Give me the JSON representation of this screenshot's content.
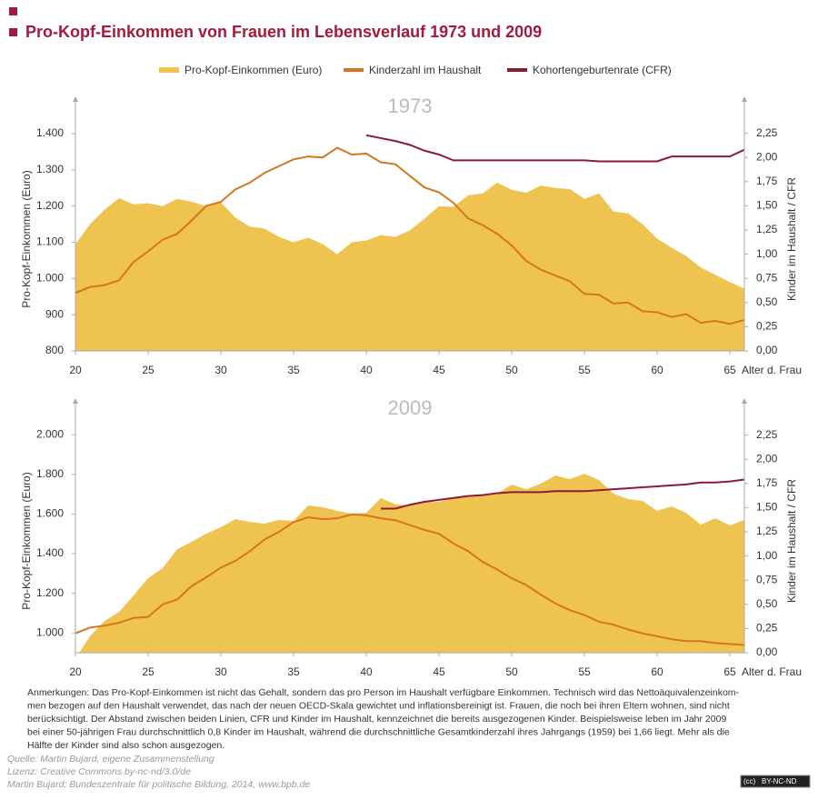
{
  "header": {
    "title": "Pro-Kopf-Einkommen von Frauen im Lebensverlauf 1973 und 2009"
  },
  "chart_data": [
    {
      "type": "area-line",
      "title": "1973",
      "xlabel": "Alter d. Frau",
      "ylabel": "Pro-Kopf-Einkommen (Euro)",
      "y2label": "Kinder im Haushalt / CFR",
      "x": [
        20,
        21,
        22,
        23,
        24,
        25,
        26,
        27,
        28,
        29,
        30,
        31,
        32,
        33,
        34,
        35,
        36,
        37,
        38,
        39,
        40,
        41,
        42,
        43,
        44,
        45,
        46,
        47,
        48,
        49,
        50,
        51,
        52,
        53,
        54,
        55,
        56,
        57,
        58,
        59,
        60,
        61,
        62,
        63,
        64,
        65,
        66
      ],
      "xlim": [
        20,
        66
      ],
      "xticks": [
        20,
        25,
        30,
        35,
        40,
        45,
        50,
        55,
        60,
        65
      ],
      "ylim": [
        800,
        1468
      ],
      "yticks": [
        {
          "value": 800,
          "label": "800"
        },
        {
          "value": 900,
          "label": "900"
        },
        {
          "value": 1000,
          "label": "1.000"
        },
        {
          "value": 1100,
          "label": "1.100"
        },
        {
          "value": 1200,
          "label": "1.200"
        },
        {
          "value": 1300,
          "label": "1.300"
        },
        {
          "value": 1400,
          "label": "1.400"
        }
      ],
      "y2lim": [
        0,
        2.5
      ],
      "y2ticks": [
        {
          "value": 0,
          "label": "0,00"
        },
        {
          "value": 0.25,
          "label": "0,25"
        },
        {
          "value": 0.5,
          "label": "0,50"
        },
        {
          "value": 0.75,
          "label": "0,75"
        },
        {
          "value": 1,
          "label": "1,00"
        },
        {
          "value": 1.25,
          "label": "1,25"
        },
        {
          "value": 1.5,
          "label": "1,50"
        },
        {
          "value": 1.75,
          "label": "1,75"
        },
        {
          "value": 2,
          "label": "2,00"
        },
        {
          "value": 2.25,
          "label": "2,25"
        }
      ],
      "grid": false,
      "series": [
        {
          "name": "Pro-Kopf-Einkommen (Euro)",
          "kind": "area",
          "color": "#eec350",
          "values": [
            1095,
            1150,
            1190,
            1222,
            1205,
            1208,
            1200,
            1220,
            1212,
            1200,
            1210,
            1168,
            1143,
            1138,
            1115,
            1100,
            1113,
            1095,
            1067,
            1100,
            1105,
            1120,
            1115,
            1133,
            1165,
            1200,
            1198,
            1230,
            1235,
            1265,
            1245,
            1237,
            1257,
            1250,
            1247,
            1220,
            1235,
            1185,
            1180,
            1150,
            1110,
            1085,
            1062,
            1030,
            1010,
            990,
            972
          ]
        },
        {
          "name": "Kinderzahl im Haushalt",
          "kind": "line",
          "axis": "y2",
          "color": "#d5761e",
          "values": [
            0.6,
            0.66,
            0.68,
            0.73,
            0.92,
            1.03,
            1.15,
            1.21,
            1.35,
            1.5,
            1.54,
            1.67,
            1.74,
            1.84,
            1.91,
            1.98,
            2.01,
            2.0,
            2.1,
            2.03,
            2.04,
            1.95,
            1.93,
            1.81,
            1.69,
            1.64,
            1.53,
            1.37,
            1.3,
            1.21,
            1.09,
            0.93,
            0.84,
            0.78,
            0.72,
            0.59,
            0.58,
            0.49,
            0.5,
            0.41,
            0.4,
            0.35,
            0.38,
            0.29,
            0.31,
            0.28,
            0.32
          ]
        },
        {
          "name": "Kohortengeburtenrate (CFR)",
          "kind": "line",
          "axis": "y2",
          "color": "#8c1c35",
          "values": [
            null,
            null,
            null,
            null,
            null,
            null,
            null,
            null,
            null,
            null,
            null,
            null,
            null,
            null,
            null,
            null,
            null,
            null,
            null,
            null,
            2.23,
            2.2,
            2.17,
            2.13,
            2.07,
            2.03,
            1.97,
            1.97,
            1.97,
            1.97,
            1.97,
            1.97,
            1.97,
            1.97,
            1.97,
            1.97,
            1.96,
            1.96,
            1.96,
            1.96,
            1.96,
            2.01,
            2.01,
            2.01,
            2.01,
            2.01,
            2.08
          ]
        }
      ]
    },
    {
      "type": "area-line",
      "title": "2009",
      "xlabel": "Alter d. Frau",
      "ylabel": "Pro-Kopf-Einkommen (Euro)",
      "y2label": "Kinder im Haushalt / CFR",
      "x": [
        20,
        21,
        22,
        23,
        24,
        25,
        26,
        27,
        28,
        29,
        30,
        31,
        32,
        33,
        34,
        35,
        36,
        37,
        38,
        39,
        40,
        41,
        42,
        43,
        44,
        45,
        46,
        47,
        48,
        49,
        50,
        51,
        52,
        53,
        54,
        55,
        56,
        57,
        58,
        59,
        60,
        61,
        62,
        63,
        64,
        65,
        66
      ],
      "xlim": [
        20,
        66
      ],
      "xticks": [
        20,
        25,
        30,
        35,
        40,
        45,
        50,
        55,
        60,
        65
      ],
      "ylim": [
        900,
        2120
      ],
      "yticks": [
        {
          "value": 1000,
          "label": "1.000"
        },
        {
          "value": 1200,
          "label": "1.200"
        },
        {
          "value": 1400,
          "label": "1.400"
        },
        {
          "value": 1600,
          "label": "1.600"
        },
        {
          "value": 1800,
          "label": "1.800"
        },
        {
          "value": 2000,
          "label": "2.000"
        }
      ],
      "y2lim": [
        0,
        2.5
      ],
      "y2ticks": [
        {
          "value": 0,
          "label": "0,00"
        },
        {
          "value": 0.25,
          "label": "0,25"
        },
        {
          "value": 0.5,
          "label": "0,50"
        },
        {
          "value": 0.75,
          "label": "0,75"
        },
        {
          "value": 1,
          "label": "1,00"
        },
        {
          "value": 1.25,
          "label": "1,25"
        },
        {
          "value": 1.5,
          "label": "1,50"
        },
        {
          "value": 1.75,
          "label": "1,75"
        },
        {
          "value": 2,
          "label": "2,00"
        },
        {
          "value": 2.25,
          "label": "2,25"
        }
      ],
      "grid": false,
      "series": [
        {
          "name": "Pro-Kopf-Einkommen (Euro)",
          "kind": "area",
          "color": "#eec350",
          "values": [
            870,
            983,
            1060,
            1106,
            1189,
            1276,
            1327,
            1423,
            1460,
            1501,
            1533,
            1574,
            1560,
            1551,
            1570,
            1565,
            1643,
            1634,
            1616,
            1602,
            1606,
            1680,
            1648,
            1643,
            1661,
            1661,
            1680,
            1693,
            1693,
            1703,
            1748,
            1725,
            1753,
            1794,
            1776,
            1803,
            1771,
            1703,
            1675,
            1666,
            1616,
            1638,
            1606,
            1546,
            1578,
            1542,
            1570
          ]
        },
        {
          "name": "Kinderzahl im Haushalt",
          "kind": "line",
          "axis": "y2",
          "color": "#d5761e",
          "values": [
            0.2,
            0.26,
            0.28,
            0.31,
            0.36,
            0.37,
            0.5,
            0.55,
            0.69,
            0.78,
            0.88,
            0.95,
            1.05,
            1.17,
            1.25,
            1.35,
            1.4,
            1.38,
            1.39,
            1.43,
            1.42,
            1.39,
            1.37,
            1.32,
            1.27,
            1.23,
            1.13,
            1.05,
            0.94,
            0.86,
            0.77,
            0.7,
            0.6,
            0.51,
            0.44,
            0.39,
            0.32,
            0.29,
            0.24,
            0.2,
            0.17,
            0.14,
            0.12,
            0.12,
            0.1,
            0.09,
            0.08
          ]
        },
        {
          "name": "Kohortengeburtenrate (CFR)",
          "kind": "line",
          "axis": "y2",
          "color": "#8c1c35",
          "values": [
            null,
            null,
            null,
            null,
            null,
            null,
            null,
            null,
            null,
            null,
            null,
            null,
            null,
            null,
            null,
            null,
            null,
            null,
            null,
            null,
            null,
            1.49,
            1.49,
            1.53,
            1.56,
            1.58,
            1.6,
            1.62,
            1.63,
            1.65,
            1.66,
            1.66,
            1.66,
            1.67,
            1.67,
            1.67,
            1.68,
            1.69,
            1.7,
            1.71,
            1.72,
            1.73,
            1.74,
            1.76,
            1.76,
            1.77,
            1.79
          ]
        }
      ]
    }
  ],
  "notes": [
    "Anmerkungen: Das Pro-Kopf-Einkommen ist nicht das Gehalt, sondern das pro Person im Haushalt verfügbare Einkommen. Technisch wird das Nettoäquivalenzeinkom-",
    "men bezogen auf den Haushalt verwendet, das nach der neuen OECD-Skala gewichtet und inflationsbereinigt ist. Frauen, die noch bei ihren Eltern wohnen, sind nicht",
    "berücksichtigt. Der Abstand zwischen beiden Linien, CFR und Kinder im Haushalt, kennzeichnet die bereits ausgezogenen Kinder. Beispielsweise leben im Jahr 2009",
    "bei einer 50-jährigen Frau durchschnittlich 0,8 Kinder im Haushalt, während die durchschnittliche Gesamtkinderzahl ihres Jahrgangs (1959) bei 1,66 liegt. Mehr als die",
    "Hälfte der Kinder sind also schon ausgezogen."
  ],
  "source": [
    "Quelle: Martin Bujard, eigene Zusammenstellung",
    "Lizenz: Creative Commons by-nc-nd/3.0/de",
    "Martin Bujard; Bundeszentrale für politische Bildung, 2014, www.bpb.de"
  ],
  "badge": {
    "cc": "(cc)",
    "license": "BY-NC-ND"
  }
}
